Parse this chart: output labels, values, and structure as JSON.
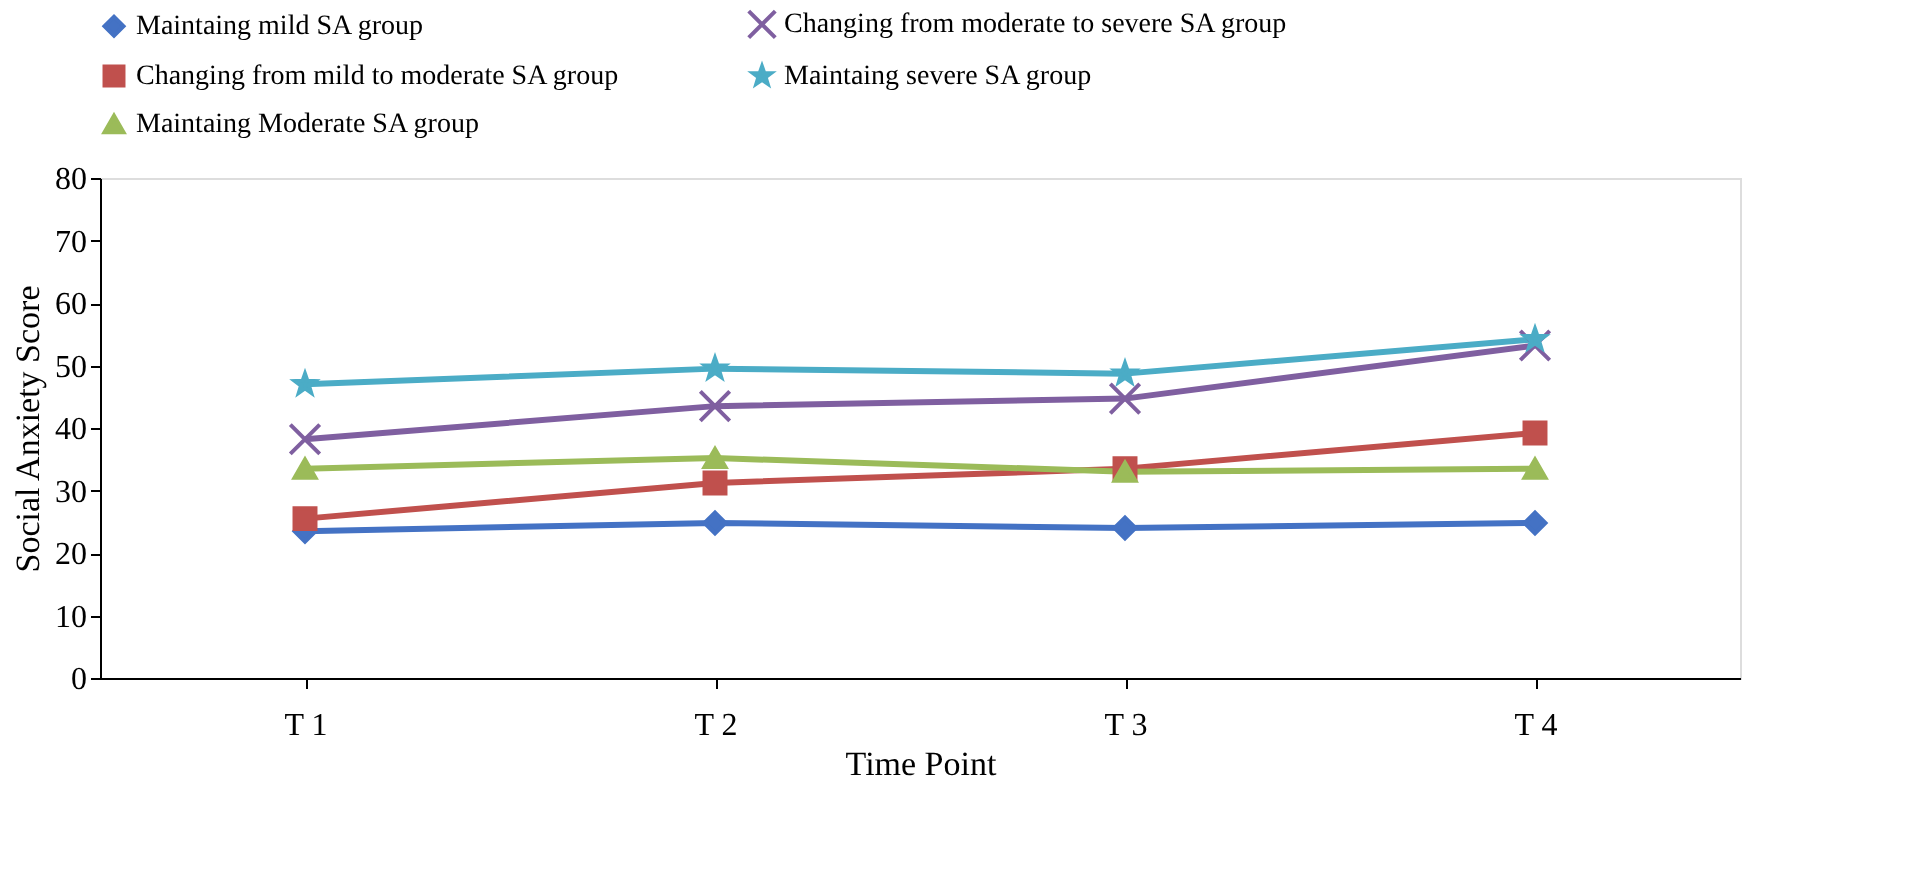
{
  "chart_data": {
    "type": "line",
    "xlabel": "Time Point",
    "ylabel": "Social Anxiety Score",
    "categories": [
      "T 1",
      "T 2",
      "T 3",
      "T 4"
    ],
    "series": [
      {
        "name": "Maintaing mild SA group",
        "color": "#4472c4",
        "marker": "diamond",
        "values": [
          23.5,
          24.8,
          24.0,
          24.8
        ]
      },
      {
        "name": "Changing from moderate to severe SA group",
        "color": "#7f5fa0",
        "marker": "cross",
        "values": [
          38.2,
          43.5,
          44.7,
          53.2
        ]
      },
      {
        "name": "Changing from mild to moderate SA group",
        "color": "#c0504d",
        "marker": "square",
        "values": [
          25.5,
          31.2,
          33.5,
          39.2
        ]
      },
      {
        "name": "Maintaing severe SA group",
        "color": "#4bacc6",
        "marker": "star",
        "values": [
          47.0,
          49.5,
          48.7,
          54.2
        ]
      },
      {
        "name": "Maintaing Moderate SA group",
        "color": "#9bbb59",
        "marker": "triangle",
        "values": [
          33.5,
          35.2,
          33.0,
          33.5
        ]
      }
    ],
    "ylim": [
      0,
      80
    ],
    "yticks": [
      0,
      10,
      20,
      30,
      40,
      50,
      60,
      70,
      80
    ],
    "grid": false,
    "legend": "top"
  }
}
